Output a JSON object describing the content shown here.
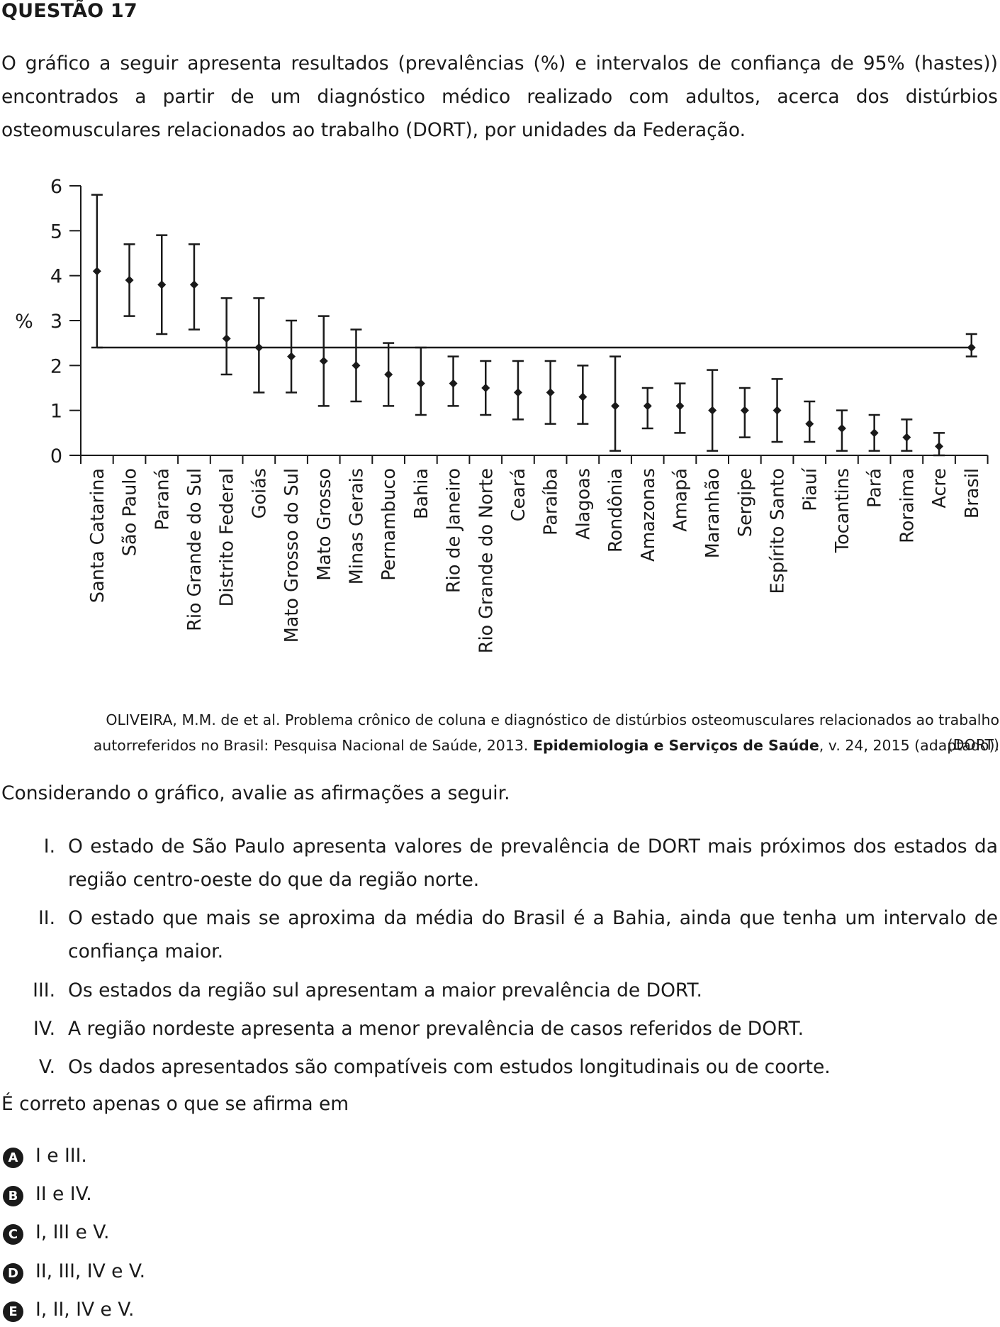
{
  "question": {
    "title": "QUESTÃO 17",
    "intro": "O gráfico a seguir apresenta resultados (prevalências (%) e intervalos de confiança de 95% (hastes)) encontrados a partir de um diagnóstico médico realizado com adultos, acerca dos distúrbios osteomusculares relacionados ao trabalho (DORT), por unidades da Federação."
  },
  "chart_data": {
    "type": "scatter",
    "ylabel": "%",
    "ylim": [
      0,
      6
    ],
    "yticks": [
      0,
      1,
      2,
      3,
      4,
      5,
      6
    ],
    "grid": false,
    "reference_line": 2.4,
    "categories": [
      "Santa Catarina",
      "São Paulo",
      "Paraná",
      "Rio Grande do Sul",
      "Distrito Federal",
      "Goiás",
      "Mato Grosso do Sul",
      "Mato Grosso",
      "Minas Gerais",
      "Pernambuco",
      "Bahia",
      "Rio de Janeiro",
      "Rio Grande do Norte",
      "Ceará",
      "Paraíba",
      "Alagoas",
      "Rondônia",
      "Amazonas",
      "Amapá",
      "Maranhão",
      "Sergipe",
      "Espírito Santo",
      "Piauí",
      "Tocantins",
      "Pará",
      "Roraima",
      "Acre",
      "Brasil"
    ],
    "values": [
      4.1,
      3.9,
      3.8,
      3.8,
      2.6,
      2.4,
      2.2,
      2.1,
      2.0,
      1.8,
      1.6,
      1.6,
      1.5,
      1.4,
      1.4,
      1.3,
      1.1,
      1.1,
      1.1,
      1.0,
      1.0,
      1.0,
      0.7,
      0.6,
      0.5,
      0.4,
      0.2,
      2.4
    ],
    "lower": [
      2.4,
      3.1,
      2.7,
      2.8,
      1.8,
      1.4,
      1.4,
      1.1,
      1.2,
      1.1,
      0.9,
      1.1,
      0.9,
      0.8,
      0.7,
      0.7,
      0.1,
      0.6,
      0.5,
      0.1,
      0.4,
      0.3,
      0.3,
      0.1,
      0.1,
      0.1,
      0.0,
      2.2
    ],
    "upper": [
      5.8,
      4.7,
      4.9,
      4.7,
      3.5,
      3.5,
      3.0,
      3.1,
      2.8,
      2.5,
      2.4,
      2.2,
      2.1,
      2.1,
      2.1,
      2.0,
      2.2,
      1.5,
      1.6,
      1.9,
      1.5,
      1.7,
      1.2,
      1.0,
      0.9,
      0.8,
      0.5,
      2.7
    ]
  },
  "reference": {
    "line1": "OLIVEIRA, M.M. de et al. Problema crônico de coluna e diagnóstico de distúrbios osteomusculares relacionados ao trabalho (DORT)",
    "line2_a": "autorreferidos no Brasil: Pesquisa Nacional de Saúde, 2013. ",
    "line2_bold": "Epidemiologia e Serviços de Saúde",
    "line2_b": ", v. 24, 2015 (adaptado)."
  },
  "lead": "Considerando o gráfico, avalie as afirmações a seguir.",
  "statements": [
    {
      "num": "I.",
      "text": "O estado de São Paulo apresenta valores de prevalência de DORT mais próximos dos estados da região centro-oeste do que da região norte."
    },
    {
      "num": "II.",
      "text": "O estado que mais se aproxima da média do Brasil é a Bahia, ainda que tenha um intervalo de confiança maior."
    },
    {
      "num": "III.",
      "text": "Os estados da região sul apresentam a maior prevalência de DORT."
    },
    {
      "num": "IV.",
      "text": "A região nordeste apresenta a menor prevalência de casos referidos de DORT."
    },
    {
      "num": "V.",
      "text": "Os dados apresentados são compatíveis com estudos longitudinais ou de coorte."
    }
  ],
  "ask": "É correto apenas o que se afirma em",
  "options": [
    {
      "letter": "A",
      "text": "I e III."
    },
    {
      "letter": "B",
      "text": "II e IV."
    },
    {
      "letter": "C",
      "text": "I, III e V."
    },
    {
      "letter": "D",
      "text": "II, III, IV e V."
    },
    {
      "letter": "E",
      "text": "I, II, IV e V."
    }
  ]
}
